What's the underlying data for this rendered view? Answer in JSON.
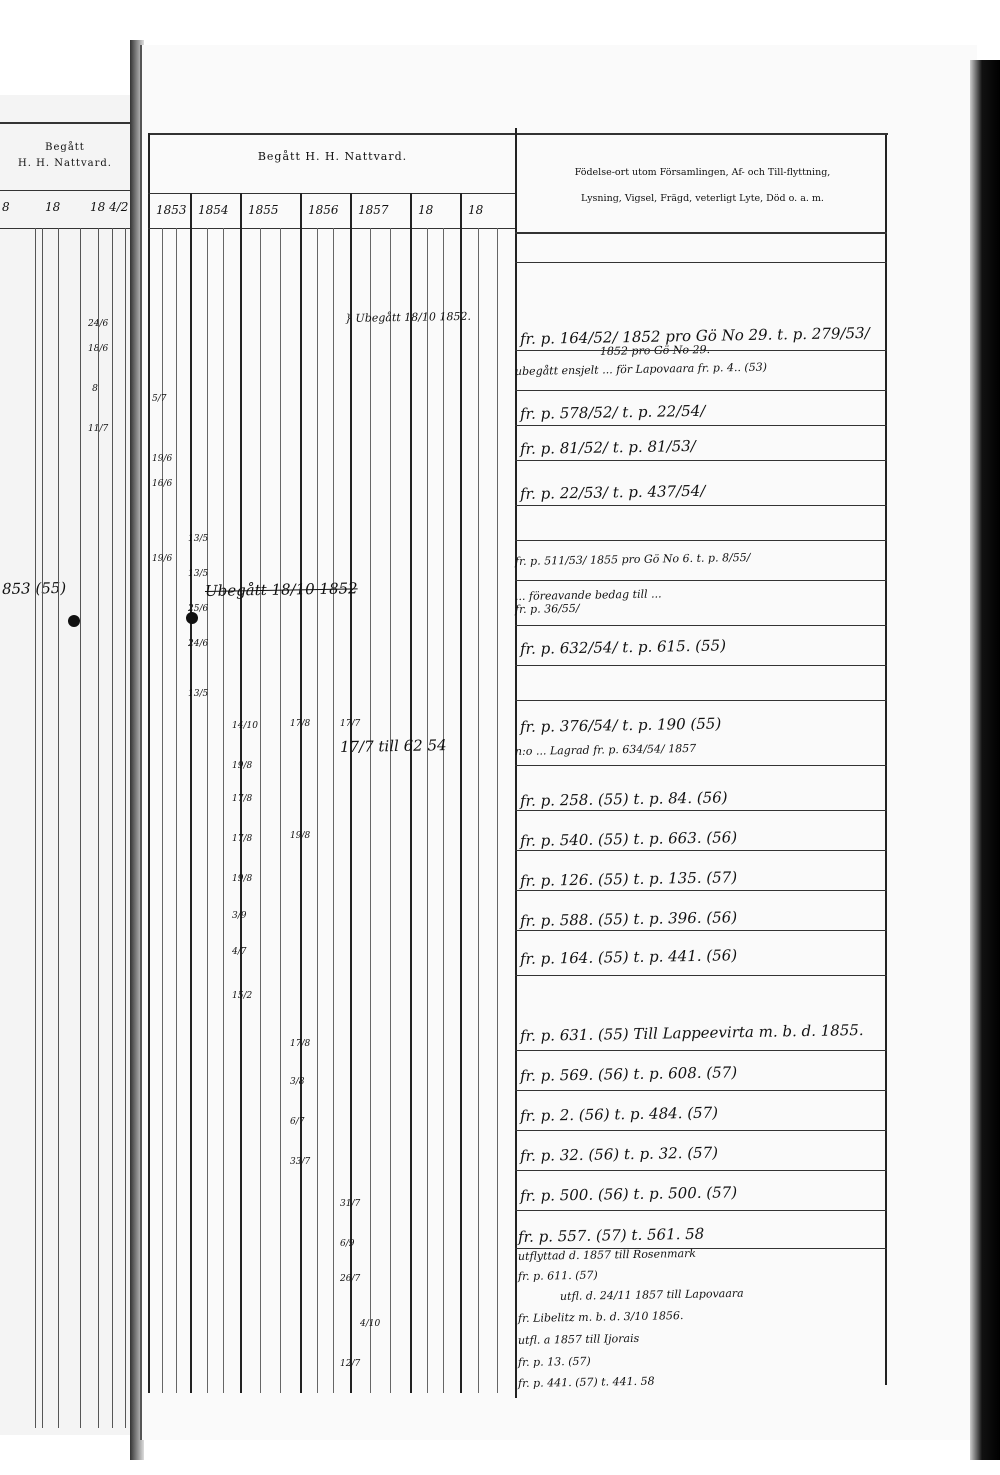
{
  "left_page": {
    "header": "Begått\nH. H. Nattvard.",
    "header_line1": "Begått",
    "header_line2": "H. H. Nattvard.",
    "years": [
      "8",
      "18",
      "18 4/2"
    ],
    "fragment": "853 (55)",
    "dates": [
      "24/6",
      "18/6",
      "8",
      "11/7"
    ]
  },
  "right_page": {
    "communion_header": "Begått H. H. Nattvard.",
    "years": [
      "1853",
      "1854",
      "1855",
      "1856",
      "1857",
      "18",
      "18"
    ],
    "remarks_header_line1": "Födelse-ort utom Församlingen, Af- och Till-flyttning,",
    "remarks_header_line2": "Lysning, Vigsel, Frägd, veterligt Lyte, Död o. a. m.",
    "column_notes": [
      {
        "text": "} Ubegått 18/10 1852."
      },
      {
        "text": "Ubegått 18/10 1852",
        "struck": true
      },
      {
        "text": "17/7 till 62 54"
      }
    ],
    "date_marks": [
      "5/7",
      "19/6",
      "16/6",
      "13/5",
      "19/6",
      "13/5",
      "25/6",
      "24/6",
      "13/5",
      "14/10",
      "17/8",
      "17/7",
      "19/8",
      "17/8",
      "19/8",
      "17/8",
      "19/8",
      "3/9",
      "4/7",
      "15/2",
      "17/8",
      "3/8",
      "6/7",
      "33/7",
      "31/7",
      "6/9",
      "26/7",
      "4/10",
      "12/7"
    ],
    "remarks": [
      "fr. p. 164/52/ 1852 pro Gö No 29. t. p. 279/53/",
      "1852 pro Gö No 29.",
      "ubegått ensjelt ... för Lapovaara fr. p. 4..  (53)",
      "fr. p. 578/52/ t. p. 22/54/",
      "fr. p. 81/52/ t. p. 81/53/",
      "fr. p. 22/53/ t. p. 437/54/",
      "fr. p. 511/53/ 1855 pro Gö No 6. t. p. 8/55/",
      "... föreavande bedag till ...",
      "fr. p. 36/55/",
      "fr. p. 632/54/ t. p. 615. (55)",
      "fr. p. 376/54/ t. p. 190 (55)",
      "n:o ... Lagrad fr. p. 634/54/ 1857",
      "fr. p. 258. (55) t. p. 84. (56)",
      "fr. p. 540. (55) t. p. 663. (56)",
      "fr. p. 126. (55) t. p. 135. (57)",
      "fr. p. 588. (55) t. p. 396. (56)",
      "fr. p. 164. (55) t. p. 441. (56)",
      "fr. p. 631. (55) Till Lappeevirta m. b. d. 1855.",
      "fr. p. 569. (56) t. p. 608. (57)",
      "fr. p. 2. (56) t. p. 484. (57)",
      "fr. p. 32. (56) t. p. 32. (57)",
      "fr. p. 500. (56) t. p. 500. (57)",
      "fr. p. 557. (57) t. 561. 58",
      "utflyttad d. 1857 till Rosenmark",
      "fr. p. 611. (57)",
      "utfl. d. 24/11 1857 till Lapovaara",
      "fr. Libelitz m. b. d. 3/10 1856.",
      "utfl. a 1857 till Ijorais",
      "fr. p. 13. (57)",
      "fr. p. 441. (57) t. 441. 58"
    ]
  }
}
